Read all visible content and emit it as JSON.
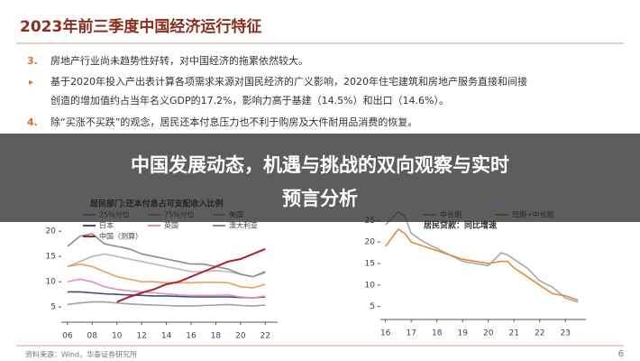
{
  "header": {
    "title": "2023年前三季度中国经济运行特征"
  },
  "points": [
    {
      "number": "3.",
      "lines": [
        "房地产行业尚未趋势性好转，对中国经济的拖累依然较大。"
      ]
    },
    {
      "lines": [
        "基于2020年投入产出表计算各项需求来源对国民经济的广义影响，2020年住宅建筑和房地产服务直接和间接",
        "创造的增加值约占当年名义GDP的17.2%，影响力高于基建（14.5%）和出口（14.6%）。"
      ]
    },
    {
      "number": "4.",
      "lines": [
        "除“买涨不买跌”的观念，居民还本付息压力也不利于购房及大件耐用品消费的恢复。"
      ]
    }
  ],
  "overlay": {
    "lines": [
      "中国发展动态，机遇与挑战的双向观察与实时",
      "预言分析"
    ]
  },
  "chart_data": [
    {
      "type": "line",
      "subtitle": "居民部门:还本付息占可支配收入比例",
      "x": [
        2006,
        2007,
        2008,
        2009,
        2010,
        2011,
        2012,
        2013,
        2014,
        2015,
        2016,
        2017,
        2018,
        2019,
        2020,
        2021,
        2022
      ],
      "xlim": [
        2005.5,
        2023
      ],
      "xticks": [
        {
          "value": 2006,
          "label": "06"
        },
        {
          "value": 2008,
          "label": "08"
        },
        {
          "value": 2010,
          "label": "10"
        },
        {
          "value": 2012,
          "label": "12"
        },
        {
          "value": 2014,
          "label": "14"
        },
        {
          "value": 2016,
          "label": "16"
        },
        {
          "value": 2018,
          "label": "18"
        },
        {
          "value": 2020,
          "label": "20"
        },
        {
          "value": 2022,
          "label": "22"
        }
      ],
      "ylim": [
        2,
        22
      ],
      "yticks": [
        5,
        10,
        15,
        20
      ],
      "series": [
        {
          "name": "25%分位",
          "color": "#a0a0a0",
          "values": [
            5.5,
            5.8,
            6,
            6,
            5.8,
            5.6,
            5.5,
            5.4,
            5.3,
            5.2,
            5.2,
            5.3,
            5.4,
            5.5,
            5.3,
            5.2,
            5.4
          ]
        },
        {
          "name": "75%分位",
          "color": "#b8b8b8",
          "values": [
            13,
            14,
            15,
            15.5,
            15,
            14.5,
            14,
            13.5,
            13,
            12.5,
            12,
            12,
            12.2,
            12,
            11.5,
            11,
            11.8
          ]
        },
        {
          "name": "美国",
          "color": "#e8a060",
          "values": [
            13,
            13.5,
            13,
            12,
            11,
            10.5,
            10,
            10,
            9.8,
            9.8,
            9.8,
            9.9,
            9.9,
            9.8,
            9,
            8.8,
            9.5
          ]
        },
        {
          "name": "日本",
          "color": "#3d4f7a",
          "values": [
            8,
            8,
            7.8,
            7.6,
            7.5,
            7.4,
            7.3,
            7.2,
            7.2,
            7.1,
            7,
            7,
            7,
            7,
            6.9,
            6.8,
            7
          ]
        },
        {
          "name": "英国",
          "color": "#e890b0",
          "values": [
            10,
            10.5,
            10,
            9,
            8.5,
            8.2,
            8,
            7.8,
            7.6,
            7.4,
            7.3,
            7.3,
            7.3,
            7.4,
            7,
            6.8,
            7.2
          ]
        },
        {
          "name": "澳大利亚",
          "color": "#8c8c8c",
          "values": [
            17,
            19,
            19.5,
            17.5,
            17,
            16.5,
            15.5,
            15,
            14.5,
            14,
            13.5,
            13.5,
            13,
            12.5,
            11.5,
            11,
            12
          ]
        },
        {
          "name": "中国（测算）",
          "color": "#b0202a",
          "values": [
            null,
            null,
            null,
            null,
            6,
            7,
            7.8,
            8.5,
            9.5,
            10,
            11,
            12,
            13,
            14,
            14.5,
            15.5,
            16.5
          ]
        }
      ]
    },
    {
      "type": "line",
      "subtitle": "居民贷款：同比增速",
      "x": [
        16,
        16.25,
        16.5,
        16.75,
        17,
        17.5,
        18,
        18.5,
        19,
        19.5,
        20,
        20.5,
        20.75,
        21,
        21.5,
        22,
        22.5,
        23,
        23.5
      ],
      "xlim": [
        15.8,
        23.8
      ],
      "xticks": [
        16,
        17,
        18,
        19,
        20,
        21,
        22,
        23
      ],
      "ylim": [
        2,
        32
      ],
      "yticks": [
        5,
        10,
        15,
        20,
        25
      ],
      "series": [
        {
          "name": "中长期",
          "color": "#a8a8a8",
          "values": [
            24,
            25.5,
            27,
            26,
            22,
            20,
            18.5,
            17,
            15.5,
            15,
            14.5,
            17.5,
            17,
            16,
            14,
            11,
            9.5,
            7,
            6
          ]
        },
        {
          "name": "短期+中长期",
          "color": "#e08a3a",
          "values": [
            19,
            21,
            23,
            22,
            20,
            19,
            18,
            17,
            16,
            15.5,
            15,
            15.5,
            15.5,
            14,
            12,
            10,
            8,
            7.5,
            6.5
          ]
        }
      ]
    }
  ],
  "footer": {
    "source": "资料来源：Wind，华泰证券研究所",
    "page": "6"
  }
}
